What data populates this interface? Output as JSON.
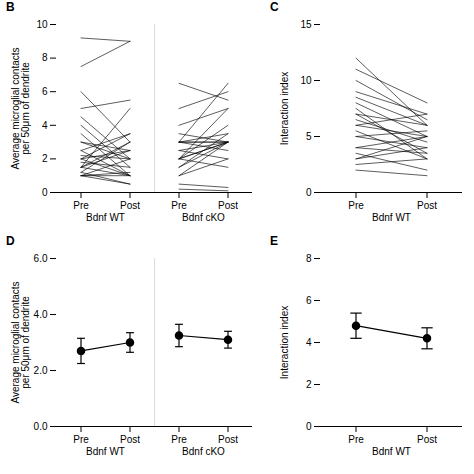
{
  "chart_data": [
    {
      "type": "line",
      "title": "B",
      "ylabel": "Average microglial contacts\nper 50μm of dendrite",
      "categories": [
        "Pre",
        "Post",
        "Pre",
        "Post"
      ],
      "groups": [
        {
          "name": "Bdnf WT",
          "pre": [
            1.0,
            1.0,
            1.0,
            1.0,
            1.2,
            1.2,
            1.5,
            1.5,
            1.5,
            1.5,
            1.8,
            2.0,
            2.0,
            2.0,
            2.2,
            2.5,
            2.5,
            3.0,
            3.0,
            3.5,
            4.0,
            4.5,
            5.0,
            6.0,
            7.5,
            9.2
          ],
          "post": [
            0.5,
            1.0,
            1.2,
            2.0,
            0.5,
            3.0,
            1.0,
            2.5,
            3.0,
            5.0,
            1.5,
            1.0,
            2.5,
            3.5,
            2.0,
            1.0,
            3.5,
            2.0,
            2.5,
            1.0,
            1.5,
            2.0,
            5.5,
            3.0,
            9.0,
            9.0
          ]
        },
        {
          "name": "Bdnf cKO",
          "pre": [
            0.2,
            0.5,
            1.0,
            1.0,
            1.5,
            1.5,
            2.0,
            2.0,
            2.0,
            2.0,
            2.0,
            2.5,
            2.5,
            3.0,
            3.0,
            3.0,
            3.0,
            3.0,
            3.5,
            4.0,
            5.0,
            6.5
          ],
          "post": [
            0.1,
            0.3,
            3.0,
            2.0,
            3.0,
            3.5,
            1.5,
            3.0,
            3.0,
            4.0,
            5.0,
            3.0,
            2.0,
            2.5,
            3.5,
            3.0,
            3.0,
            6.5,
            3.0,
            5.0,
            6.0,
            5.5
          ]
        }
      ],
      "ylim": [
        0,
        10
      ],
      "yticks": [
        0,
        2,
        4,
        6,
        8,
        10
      ],
      "color": "#000000"
    },
    {
      "type": "line",
      "title": "C",
      "ylabel": "Interaction index",
      "categories": [
        "Pre",
        "Post"
      ],
      "groups": [
        {
          "name": "Bdnf WT",
          "pre": [
            2.0,
            2.5,
            3.0,
            3.0,
            3.5,
            4.0,
            4.0,
            5.0,
            5.0,
            5.5,
            6.0,
            6.0,
            6.5,
            7.0,
            7.0,
            7.5,
            8.0,
            8.5,
            9.0,
            10.0,
            11.0,
            12.0
          ],
          "post": [
            1.5,
            3.0,
            4.0,
            5.0,
            2.0,
            3.5,
            5.0,
            4.0,
            5.5,
            3.0,
            5.0,
            7.0,
            4.5,
            3.5,
            6.0,
            3.0,
            5.0,
            6.0,
            7.0,
            6.5,
            8.0,
            6.0
          ]
        }
      ],
      "ylim": [
        0,
        15
      ],
      "yticks": [
        0,
        5,
        10,
        15
      ],
      "color": "#000000"
    },
    {
      "type": "errorbar",
      "title": "D",
      "ylabel": "Average microglial contacts\nper 50μm of dendrite",
      "categories": [
        "Pre",
        "Post",
        "Pre",
        "Post"
      ],
      "groups": [
        {
          "name": "Bdnf WT",
          "values": [
            2.7,
            3.0
          ],
          "errors": [
            0.45,
            0.35
          ]
        },
        {
          "name": "Bdnf cKO",
          "values": [
            3.25,
            3.1
          ],
          "errors": [
            0.4,
            0.3
          ]
        }
      ],
      "ylim": [
        0,
        6
      ],
      "yticks": [
        0,
        2,
        4,
        6
      ],
      "color": "#000000",
      "marker": "circle"
    },
    {
      "type": "errorbar",
      "title": "E",
      "ylabel": "Interaction index",
      "categories": [
        "Pre",
        "Post"
      ],
      "groups": [
        {
          "name": "Bdnf WT",
          "values": [
            4.8,
            4.2
          ],
          "errors": [
            0.6,
            0.5
          ]
        }
      ],
      "ylim": [
        0,
        8
      ],
      "yticks": [
        0,
        2,
        4,
        6,
        8
      ],
      "color": "#000000",
      "marker": "circle"
    }
  ]
}
